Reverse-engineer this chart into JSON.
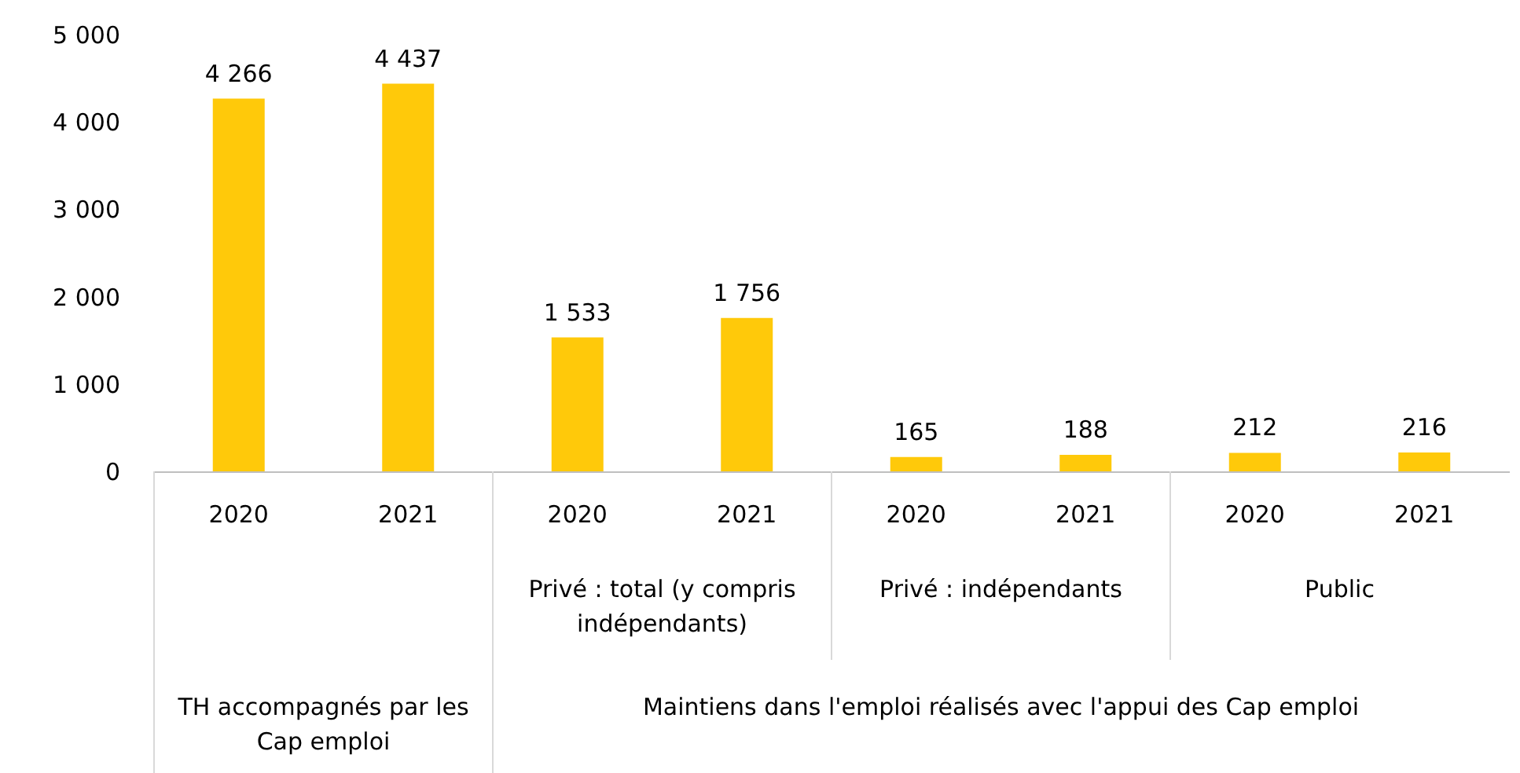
{
  "chart_data": {
    "type": "bar",
    "categories": [
      "2020",
      "2021",
      "2020",
      "2021",
      "2020",
      "2021",
      "2020",
      "2021"
    ],
    "values": [
      4266,
      4437,
      1533,
      1756,
      165,
      188,
      212,
      216
    ],
    "value_labels": [
      "4 266",
      "4 437",
      "1 533",
      "1 756",
      "165",
      "188",
      "212",
      "216"
    ],
    "color": "#ffc90a",
    "ylim": [
      0,
      5000
    ],
    "yticks": [
      0,
      {
        "value": 1000,
        "label": "1 000"
      },
      {
        "value": 2000,
        "label": "2 000"
      },
      {
        "value": 3000,
        "label": "3 000"
      },
      {
        "value": 4000,
        "label": "4 000"
      },
      {
        "value": 5000,
        "label": "5 000"
      }
    ],
    "grid": false,
    "annotations": [
      "Privé : total (y compris indépendants)",
      "Privé : indépendants",
      "Public",
      "TH accompagnés par les Cap emploi",
      "Maintiens dans l'emploi réalisés avec l'appui des Cap emploi"
    ]
  }
}
